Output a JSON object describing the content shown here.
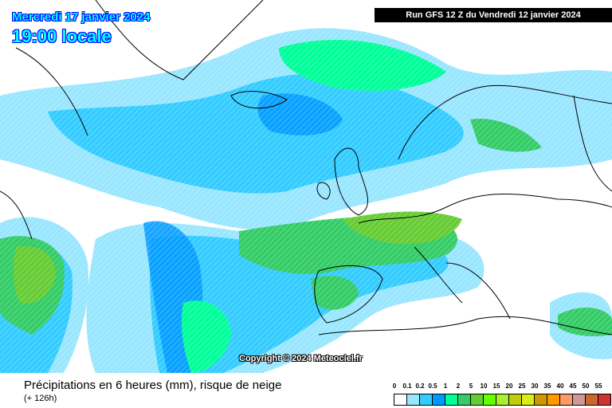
{
  "header": {
    "date": "Mercredi 17 janvier 2024",
    "time": "19:00 locale",
    "run": "Run GFS 12 Z du Vendredi 12 janvier 2024"
  },
  "copyright": "Copyright © 2024 Meteociel.fr",
  "footer": {
    "title": "Précipitations en 6 heures (mm), risque de neige",
    "lead": "(+ 126h)"
  },
  "legend": {
    "labels": [
      "0",
      "0.1",
      "0.2",
      "0.5",
      "1",
      "2",
      "5",
      "10",
      "15",
      "20",
      "25",
      "30",
      "35",
      "40",
      "45",
      "50",
      "55"
    ],
    "colors": [
      "#ffffff",
      "#99e6ff",
      "#33ccff",
      "#0099ff",
      "#00ff99",
      "#33cc66",
      "#66cc33",
      "#66ff00",
      "#a8f02e",
      "#bfcc10",
      "#d9ef14",
      "#cc9900",
      "#ff9900",
      "#ff9966",
      "#cc9999",
      "#cc6633",
      "#cc3333"
    ]
  }
}
